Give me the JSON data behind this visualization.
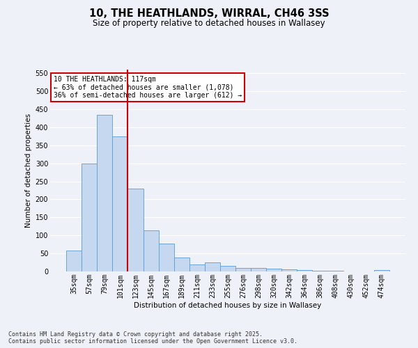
{
  "title": "10, THE HEATHLANDS, WIRRAL, CH46 3SS",
  "subtitle": "Size of property relative to detached houses in Wallasey",
  "xlabel": "Distribution of detached houses by size in Wallasey",
  "ylabel": "Number of detached properties",
  "categories": [
    "35sqm",
    "57sqm",
    "79sqm",
    "101sqm",
    "123sqm",
    "145sqm",
    "167sqm",
    "189sqm",
    "211sqm",
    "233sqm",
    "255sqm",
    "276sqm",
    "298sqm",
    "320sqm",
    "342sqm",
    "364sqm",
    "386sqm",
    "408sqm",
    "430sqm",
    "452sqm",
    "474sqm"
  ],
  "values": [
    57,
    300,
    435,
    375,
    230,
    113,
    78,
    38,
    20,
    26,
    15,
    10,
    10,
    8,
    5,
    4,
    2,
    1,
    0,
    0,
    4
  ],
  "bar_color": "#c5d8f0",
  "bar_edge_color": "#5b9bd5",
  "bar_width": 1.0,
  "vline_color": "#cc0000",
  "annotation_text": "10 THE HEATHLANDS: 117sqm\n← 63% of detached houses are smaller (1,078)\n36% of semi-detached houses are larger (612) →",
  "annotation_box_color": "#ffffff",
  "annotation_box_edge": "#cc0000",
  "ylim": [
    0,
    560
  ],
  "yticks": [
    0,
    50,
    100,
    150,
    200,
    250,
    300,
    350,
    400,
    450,
    500,
    550
  ],
  "background_color": "#eef2f8",
  "grid_color": "#ffffff",
  "footer_text": "Contains HM Land Registry data © Crown copyright and database right 2025.\nContains public sector information licensed under the Open Government Licence v3.0.",
  "title_fontsize": 10.5,
  "subtitle_fontsize": 8.5,
  "axis_label_fontsize": 7.5,
  "tick_fontsize": 7,
  "annotation_fontsize": 7,
  "footer_fontsize": 6
}
